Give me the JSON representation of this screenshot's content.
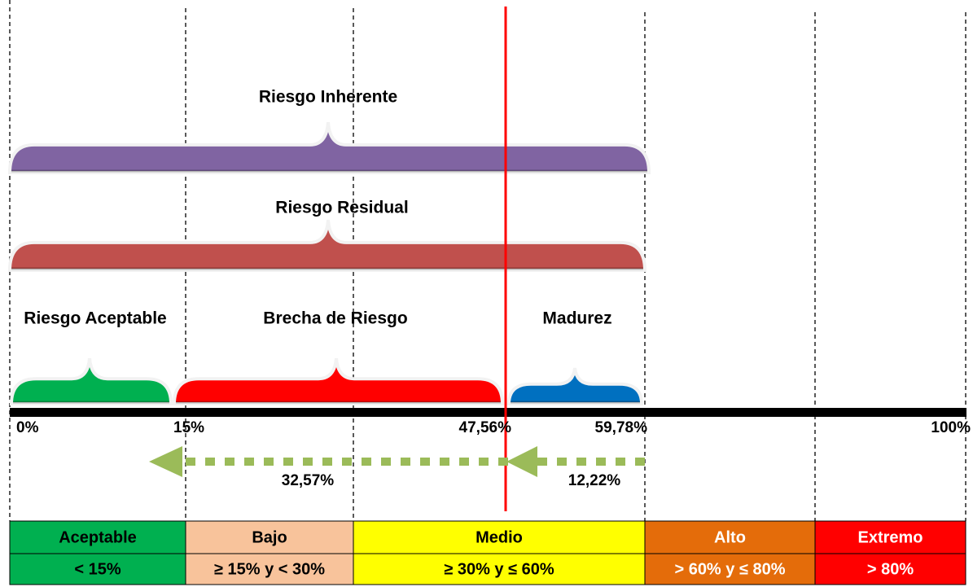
{
  "brackets": [
    {
      "label": "Riesgo Inherente"
    },
    {
      "label": "Riesgo Residual"
    },
    {
      "label": "Riesgo Aceptable"
    },
    {
      "label": "Brecha de Riesgo"
    },
    {
      "label": "Madurez"
    }
  ],
  "axis_labels": [
    "0%",
    "15%",
    "47,56%",
    "59,78%",
    "100%"
  ],
  "arrows": [
    "32,57%",
    "12,22%"
  ],
  "levels": [
    {
      "name": "Aceptable",
      "range": "< 15%"
    },
    {
      "name": "Bajo",
      "range": "≥ 15% y < 30%"
    },
    {
      "name": "Medio",
      "range": "≥ 30% y ≤ 60%"
    },
    {
      "name": "Alto",
      "range": "> 60% y  ≤ 80%"
    },
    {
      "name": "Extremo",
      "range": "> 80%"
    }
  ]
}
